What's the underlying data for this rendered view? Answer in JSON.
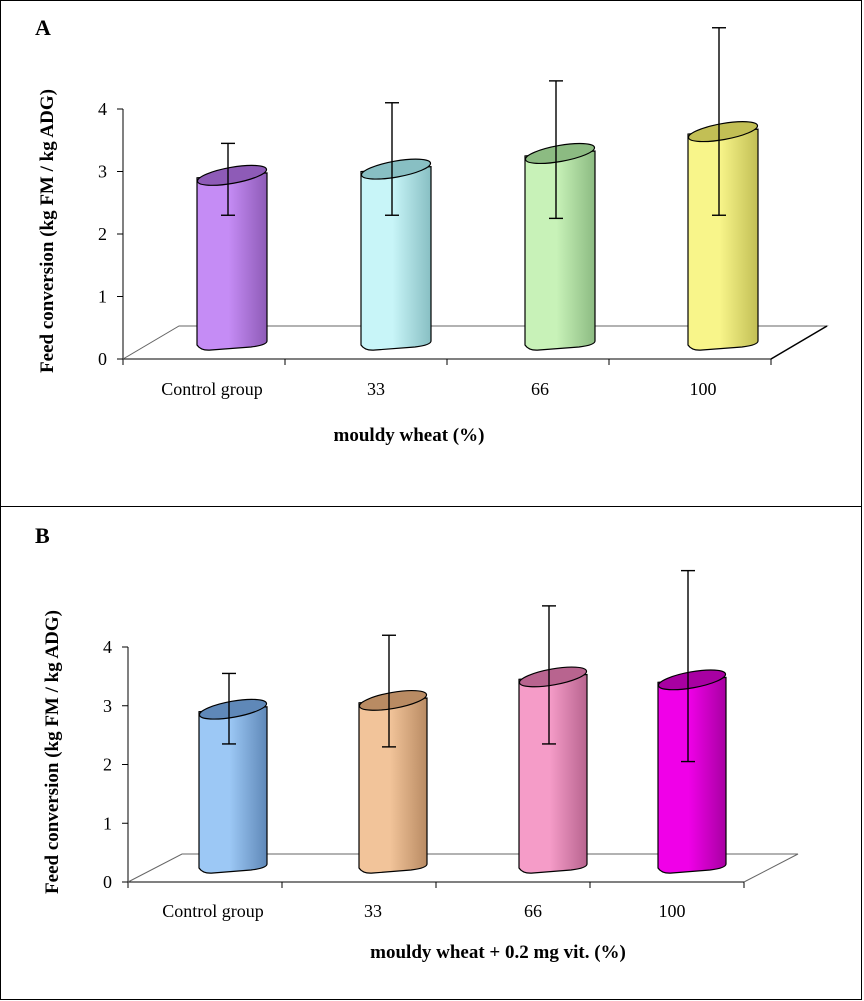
{
  "chart_data": [
    {
      "type": "bar",
      "panel_label": "A",
      "title": "",
      "xlabel": "mouldy wheat (%)",
      "ylabel": "Feed conversion (kg FM / kg ADG)",
      "ylim": [
        0,
        4
      ],
      "yticks": [
        "0",
        "1",
        "2",
        "3",
        "4"
      ],
      "categories": [
        "Control group",
        "33",
        "66",
        "100"
      ],
      "values": [
        2.9,
        3.0,
        3.25,
        3.6
      ],
      "error_upper": [
        3.45,
        4.1,
        4.45,
        5.3
      ],
      "error_lower": [
        2.3,
        2.3,
        2.25,
        2.3
      ],
      "colors": [
        "#c58cf5",
        "#c8f5f8",
        "#c8f2b8",
        "#f8f58a"
      ],
      "shade_colors": [
        "#8e5bb7",
        "#88bfc3",
        "#8cbb82",
        "#c2bf55"
      ]
    },
    {
      "type": "bar",
      "panel_label": "B",
      "title": "",
      "xlabel": "mouldy wheat + 0.2 mg vit. (%)",
      "ylabel": "Feed conversion (kg FM / kg ADG)",
      "ylim": [
        0,
        4
      ],
      "yticks": [
        "0",
        "1",
        "2",
        "3",
        "4"
      ],
      "categories": [
        "Control group",
        "33",
        "66",
        "100"
      ],
      "values": [
        2.9,
        3.05,
        3.45,
        3.4
      ],
      "error_upper": [
        3.55,
        4.2,
        4.7,
        5.3
      ],
      "error_lower": [
        2.35,
        2.3,
        2.35,
        2.05
      ],
      "colors": [
        "#9cc8f5",
        "#f2c49a",
        "#f59cc8",
        "#f000e8"
      ],
      "shade_colors": [
        "#5f88b8",
        "#b98b63",
        "#b8648f",
        "#a800a2"
      ]
    }
  ]
}
